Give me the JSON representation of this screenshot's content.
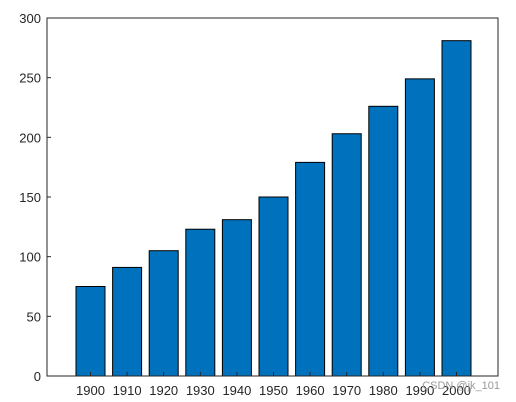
{
  "chart_data": {
    "type": "bar",
    "categories": [
      "1900",
      "1910",
      "1920",
      "1930",
      "1940",
      "1950",
      "1960",
      "1970",
      "1980",
      "1990",
      "2000"
    ],
    "values": [
      75,
      91,
      105,
      123,
      131,
      150,
      179,
      203,
      226,
      249,
      281
    ],
    "ylim": [
      0,
      300
    ],
    "yticks": [
      0,
      50,
      100,
      150,
      200,
      250,
      300
    ],
    "grid": false,
    "bar_color": "#0072bd",
    "bar_edge_color": "#000000"
  },
  "watermark": "CSDN @jk_101"
}
